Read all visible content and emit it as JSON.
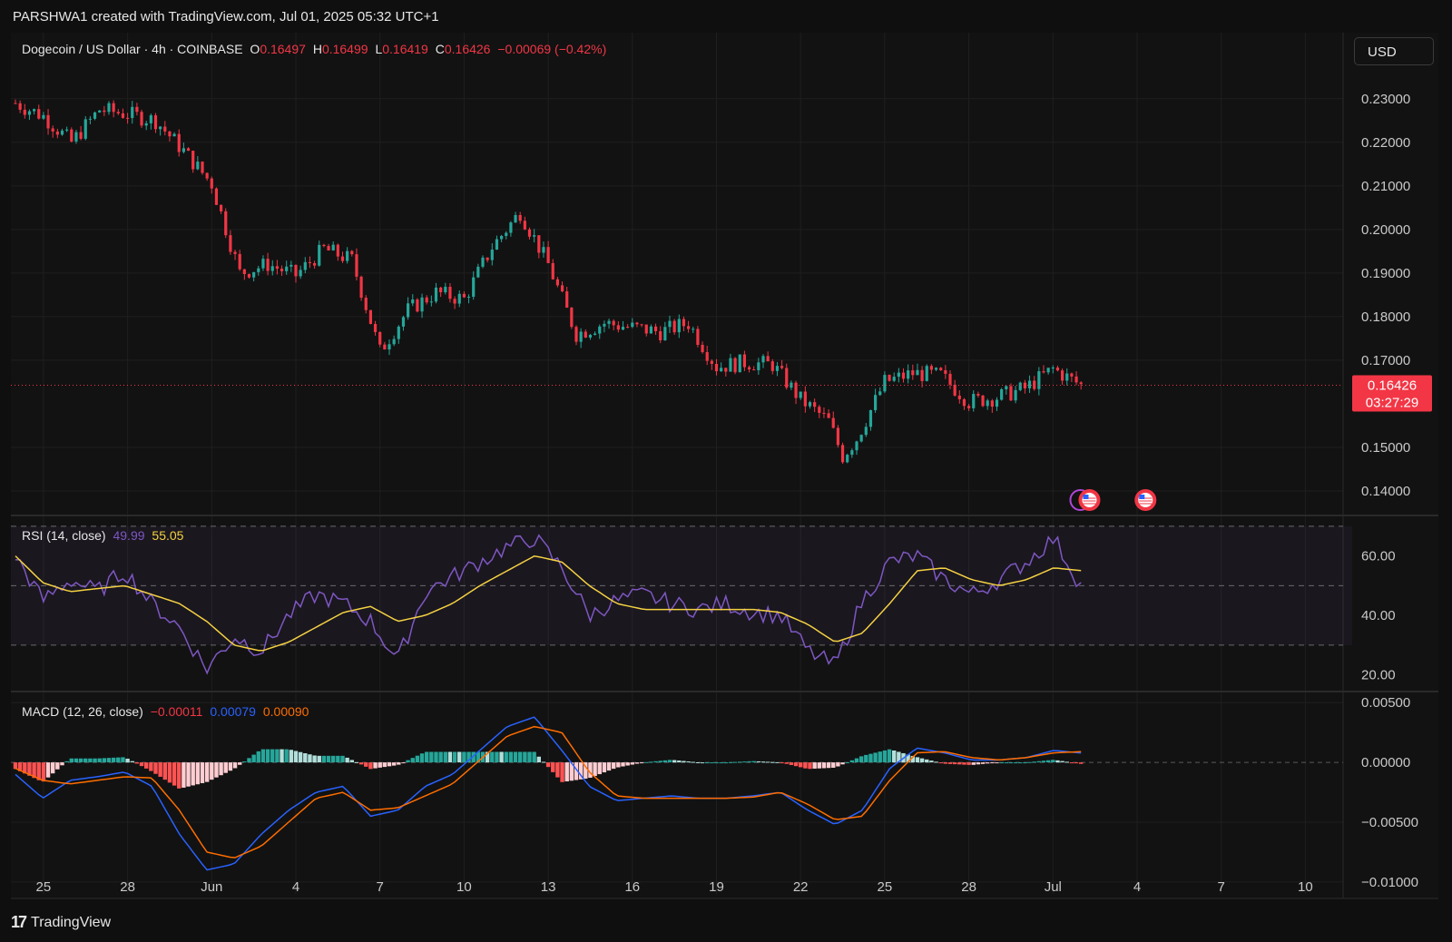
{
  "caption": "PARSHWA1 created with TradingView.com, Jul 01, 2025 05:32 UTC+1",
  "currency_button": "USD",
  "brand": "TradingView",
  "colors": {
    "background": "#121212",
    "up": "#26a69a",
    "down": "#f23645",
    "rsi_line": "#7e57c2",
    "rsi_ma": "#f5d142",
    "macd_line": "#2962ff",
    "signal_line": "#ff6d00",
    "price_tag_bg": "#f23645"
  },
  "price_legend": {
    "symbol": "Dogecoin / US Dollar · 4h · COINBASE",
    "o_label": "O",
    "o_value": "0.16497",
    "h_label": "H",
    "h_value": "0.16499",
    "l_label": "L",
    "l_value": "0.16419",
    "c_label": "C",
    "c_value": "0.16426",
    "change": "−0.00069 (−0.42%)"
  },
  "rsi_legend": {
    "label": "RSI (14, close)",
    "value": "49.99",
    "ma_value": "55.05"
  },
  "macd_legend": {
    "label": "MACD (12, 26, close)",
    "hist": "−0.00011",
    "macd": "0.00079",
    "signal": "0.00090"
  },
  "last_price": {
    "price": "0.16426",
    "countdown": "03:27:29"
  },
  "price_axis": [
    "0.23000",
    "0.22000",
    "0.21000",
    "0.20000",
    "0.19000",
    "0.18000",
    "0.17000",
    "0.15000",
    "0.14000"
  ],
  "rsi_axis": [
    "60.00",
    "40.00",
    "20.00"
  ],
  "macd_axis": [
    "0.00500",
    "0.00000",
    "−0.00500",
    "−0.01000"
  ],
  "time_axis": [
    "25",
    "28",
    "Jun",
    "4",
    "7",
    "10",
    "13",
    "16",
    "19",
    "22",
    "25",
    "28",
    "Jul",
    "4",
    "7",
    "10"
  ],
  "event_markers": [
    "us-flag-icon",
    "us-flag-icon"
  ],
  "chart_data": [
    {
      "type": "candlestick",
      "title": "Dogecoin / US Dollar · 4h · COINBASE",
      "x_range": [
        "May 24 2025",
        "Jul 11 2025"
      ],
      "ylim": [
        0.135,
        0.236
      ],
      "close_path": [
        [
          "May 24",
          0.229
        ],
        [
          "May 25",
          0.226
        ],
        [
          "May 26",
          0.22
        ],
        [
          "May 27",
          0.2275
        ],
        [
          "May 28",
          0.2265
        ],
        [
          "May 29",
          0.225
        ],
        [
          "May 30",
          0.218
        ],
        [
          "May 31",
          0.2105
        ],
        [
          "Jun 1",
          0.19
        ],
        [
          "Jun 2",
          0.192
        ],
        [
          "Jun 3",
          0.1895
        ],
        [
          "Jun 4",
          0.1955
        ],
        [
          "Jun 5",
          0.193
        ],
        [
          "Jun 6",
          0.172
        ],
        [
          "Jun 7",
          0.1815
        ],
        [
          "Jun 8",
          0.1855
        ],
        [
          "Jun 9",
          0.184
        ],
        [
          "Jun 10",
          0.196
        ],
        [
          "Jun 11",
          0.204
        ],
        [
          "Jun 12",
          0.192
        ],
        [
          "Jun 13",
          0.176
        ],
        [
          "Jun 14",
          0.1785
        ],
        [
          "Jun 15",
          0.1775
        ],
        [
          "Jun 16",
          0.1765
        ],
        [
          "Jun 17",
          0.1785
        ],
        [
          "Jun 18",
          0.1685
        ],
        [
          "Jun 19",
          0.1695
        ],
        [
          "Jun 20",
          0.169
        ],
        [
          "Jun 21",
          0.161
        ],
        [
          "Jun 22",
          0.156
        ],
        [
          "Jun 22.5",
          0.148
        ],
        [
          "Jun 23",
          0.152
        ],
        [
          "Jun 24",
          0.165
        ],
        [
          "Jun 25",
          0.167
        ],
        [
          "Jun 26",
          0.1665
        ],
        [
          "Jun 27",
          0.1605
        ],
        [
          "Jun 28",
          0.1615
        ],
        [
          "Jun 29",
          0.1635
        ],
        [
          "Jun 30",
          0.168
        ],
        [
          "Jul 1",
          0.16426
        ]
      ]
    },
    {
      "type": "line",
      "title": "RSI (14, close)",
      "ylim": [
        15,
        73
      ],
      "bands": [
        30,
        50,
        70
      ],
      "series": [
        {
          "name": "RSI",
          "values": [
            60,
            45,
            52,
            48,
            55,
            44,
            36,
            22,
            33,
            28,
            40,
            47,
            44,
            38,
            25,
            48,
            53,
            58,
            63,
            66,
            56,
            40,
            45,
            47,
            44,
            42,
            44,
            41,
            40,
            28,
            23,
            45,
            58,
            60,
            52,
            47,
            52,
            58,
            66,
            49.99
          ]
        },
        {
          "name": "RSI MA",
          "values": [
            60,
            51,
            48,
            49,
            50,
            47,
            44,
            38,
            30,
            28,
            31,
            36,
            41,
            43,
            38,
            40,
            44,
            50,
            55,
            60,
            58,
            50,
            44,
            42,
            42,
            42,
            42,
            42,
            41,
            37,
            31,
            34,
            44,
            55,
            56,
            52,
            50,
            52,
            56,
            55.05
          ]
        }
      ]
    },
    {
      "type": "line+bar",
      "title": "MACD (12, 26, close)",
      "ylim": [
        -0.011,
        0.0057
      ],
      "series": [
        {
          "name": "MACD",
          "values": [
            -0.001,
            -0.003,
            -0.0015,
            -0.0012,
            -0.0008,
            -0.002,
            -0.006,
            -0.009,
            -0.0085,
            -0.006,
            -0.004,
            -0.0025,
            -0.002,
            -0.0045,
            -0.004,
            -0.002,
            -0.001,
            0.001,
            0.003,
            0.0038,
            0.001,
            -0.002,
            -0.0032,
            -0.003,
            -0.0028,
            -0.003,
            -0.003,
            -0.0028,
            -0.0025,
            -0.004,
            -0.0052,
            -0.004,
            -0.0005,
            0.0012,
            0.0008,
            0.0002,
            0.0002,
            0.0004,
            0.001,
            0.00079
          ]
        },
        {
          "name": "Signal",
          "values": [
            -0.0005,
            -0.0015,
            -0.0018,
            -0.0015,
            -0.0012,
            -0.0013,
            -0.004,
            -0.0075,
            -0.008,
            -0.007,
            -0.005,
            -0.003,
            -0.0025,
            -0.004,
            -0.0038,
            -0.0028,
            -0.0018,
            0.0002,
            0.0022,
            0.003,
            0.0025,
            -0.0008,
            -0.0028,
            -0.003,
            -0.003,
            -0.003,
            -0.003,
            -0.0029,
            -0.0025,
            -0.0035,
            -0.0048,
            -0.0045,
            -0.0015,
            0.0008,
            0.0009,
            0.0004,
            0.0002,
            0.0004,
            0.0008,
            0.0009
          ]
        }
      ]
    }
  ]
}
